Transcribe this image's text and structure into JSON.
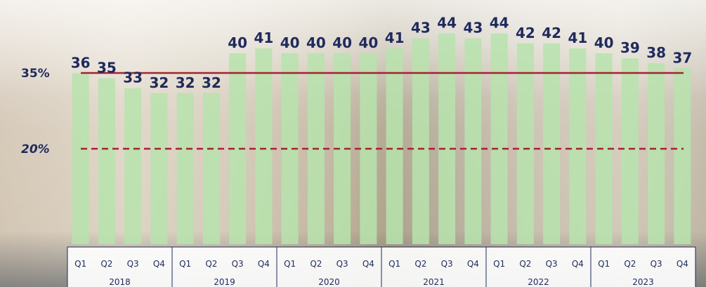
{
  "chart_data": {
    "type": "bar",
    "categories": [
      "Q1",
      "Q2",
      "Q3",
      "Q4",
      "Q1",
      "Q2",
      "Q3",
      "Q4",
      "Q1",
      "Q2",
      "Q3",
      "Q4",
      "Q1",
      "Q2",
      "Q3",
      "Q4",
      "Q1",
      "Q2",
      "Q3",
      "Q4",
      "Q1",
      "Q2",
      "Q3",
      "Q4"
    ],
    "years": [
      "2018",
      "2019",
      "2020",
      "2021",
      "2022",
      "2023"
    ],
    "values": [
      36,
      35,
      33,
      32,
      32,
      32,
      40,
      41,
      40,
      40,
      40,
      40,
      41,
      43,
      44,
      43,
      44,
      42,
      42,
      41,
      40,
      39,
      38,
      37
    ],
    "value_labels": [
      "36",
      "35",
      "33",
      "32",
      "32",
      "32",
      "40",
      "41",
      "40",
      "40",
      "40",
      "40",
      "41",
      "43",
      "44",
      "43",
      "44",
      "42",
      "42",
      "41",
      "40",
      "39",
      "38",
      "37"
    ],
    "reference_lines": [
      {
        "label": "35%",
        "value": 35,
        "style": "solid",
        "color": "#a3232d"
      },
      {
        "label": "20%",
        "value": 20,
        "style": "dashed",
        "color": "#a3232d"
      }
    ],
    "bar_color": "#b7e3ad",
    "label_color": "#1f2a5c",
    "ylim": [
      0,
      45
    ],
    "title": "",
    "xlabel": "",
    "ylabel": ""
  }
}
